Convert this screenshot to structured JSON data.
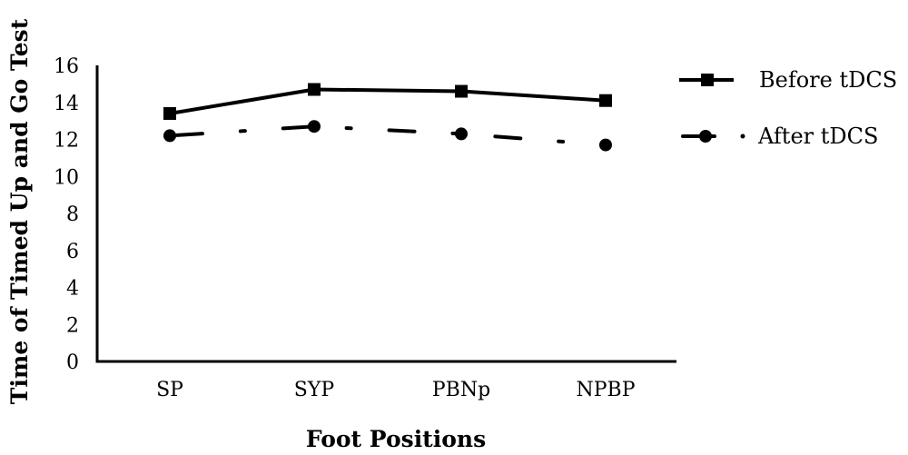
{
  "chart_data": {
    "type": "line",
    "categories": [
      "SP",
      "SYP",
      "PBNp",
      "NPBP"
    ],
    "series": [
      {
        "name": "Before tDCS",
        "values": [
          13.4,
          14.7,
          14.6,
          14.1
        ],
        "style": "solid",
        "marker": "square",
        "color": "#000000"
      },
      {
        "name": "After tDCS",
        "values": [
          12.2,
          12.7,
          12.3,
          11.7
        ],
        "style": "dash-dot",
        "marker": "circle",
        "color": "#000000"
      }
    ],
    "xlabel": "Foot Positions",
    "ylabel": "Time of Timed Up and Go Test",
    "ylim": [
      0,
      16
    ],
    "yticks": [
      0,
      2,
      4,
      6,
      8,
      10,
      12,
      14,
      16
    ],
    "grid": false,
    "legend": "right"
  }
}
